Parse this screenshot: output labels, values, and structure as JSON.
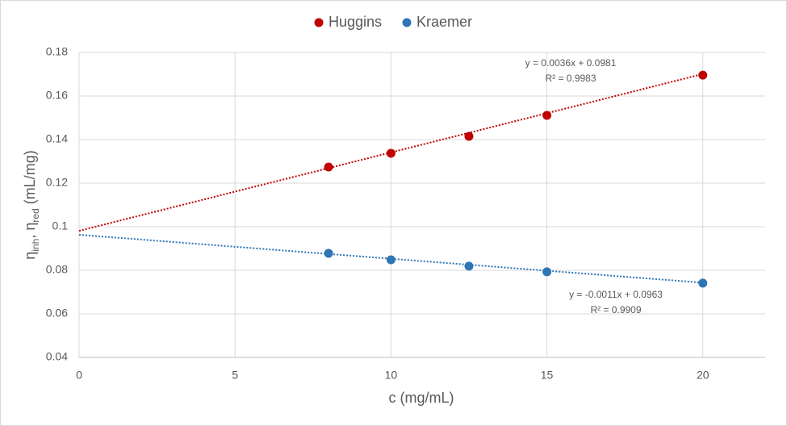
{
  "chart_data": {
    "type": "scatter",
    "x_label": "c (mg/mL)",
    "y_label": [
      "η",
      "inh",
      ", η",
      "red",
      " (mL/mg)"
    ],
    "xlim": [
      0,
      22
    ],
    "xticks": [
      0,
      5,
      10,
      15,
      20
    ],
    "ylim": [
      0.04,
      0.18
    ],
    "yticks": [
      0.04,
      0.06,
      0.08,
      0.1,
      0.12,
      0.14,
      0.16,
      0.18
    ],
    "grid": true,
    "legend": "top",
    "series": [
      {
        "name": "Huggins",
        "color": "#c00000",
        "x": [
          8,
          10,
          12.5,
          15,
          20
        ],
        "values": [
          0.1274,
          0.1337,
          0.1415,
          0.1511,
          0.1696
        ],
        "trendline": {
          "slope": 0.0036,
          "intercept": 0.0981,
          "equation": "y = 0.0036x + 0.0981",
          "r2": "R² = 0.9983"
        }
      },
      {
        "name": "Kraemer",
        "color": "#2e75b6",
        "x": [
          8,
          10,
          12.5,
          15,
          20
        ],
        "values": [
          0.0878,
          0.0848,
          0.0819,
          0.0793,
          0.0741
        ],
        "trendline": {
          "slope": -0.0011,
          "intercept": 0.0963,
          "equation": "y = -0.0011x + 0.0963",
          "r2": "R² = 0.9909"
        }
      }
    ]
  }
}
